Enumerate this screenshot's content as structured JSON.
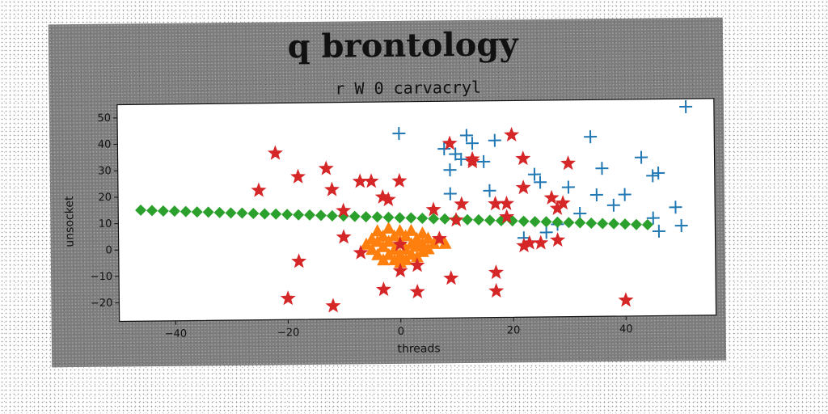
{
  "chart_data": {
    "type": "scatter",
    "title": "q brontology",
    "subtitle": "r W 0 carvacryl",
    "xlabel": "threads",
    "ylabel": "unsocket",
    "xlim": [
      -50,
      56
    ],
    "ylim": [
      -27,
      55
    ],
    "xticks": [
      -40,
      -20,
      0,
      20,
      40
    ],
    "yticks": [
      -20,
      -10,
      0,
      10,
      20,
      30,
      40,
      50
    ],
    "grid": false,
    "legend": "none",
    "series": [
      {
        "color": "#1f77b4",
        "marker": "plus",
        "points": [
          [
            0,
            43
          ],
          [
            12,
            42
          ],
          [
            13,
            39
          ],
          [
            17,
            40
          ],
          [
            8,
            37
          ],
          [
            10,
            35
          ],
          [
            11,
            33
          ],
          [
            15,
            32
          ],
          [
            9,
            29
          ],
          [
            24,
            27
          ],
          [
            25,
            24
          ],
          [
            34,
            41
          ],
          [
            43,
            33
          ],
          [
            45,
            26
          ],
          [
            46,
            27
          ],
          [
            36,
            29
          ],
          [
            51,
            52
          ],
          [
            30,
            22
          ],
          [
            35,
            19
          ],
          [
            40,
            19
          ],
          [
            38,
            15
          ],
          [
            45,
            10
          ],
          [
            49,
            14
          ],
          [
            32,
            12
          ],
          [
            28,
            8
          ],
          [
            22,
            3
          ],
          [
            16,
            21
          ],
          [
            9,
            20
          ],
          [
            26,
            5
          ],
          [
            46,
            5
          ],
          [
            50,
            7
          ]
        ]
      },
      {
        "color": "#ff7f0e",
        "marker": "triangle",
        "points": [
          [
            -4,
            6
          ],
          [
            -2,
            7
          ],
          [
            0,
            6
          ],
          [
            2,
            6
          ],
          [
            4,
            5
          ],
          [
            -5,
            3
          ],
          [
            -3,
            4
          ],
          [
            -1,
            4
          ],
          [
            1,
            4
          ],
          [
            3,
            3
          ],
          [
            5,
            3
          ],
          [
            7,
            3
          ],
          [
            -6,
            1
          ],
          [
            -4,
            2
          ],
          [
            -2,
            2
          ],
          [
            0,
            2
          ],
          [
            2,
            1
          ],
          [
            4,
            1
          ],
          [
            6,
            1
          ],
          [
            8,
            1
          ],
          [
            -5,
            -1
          ],
          [
            -3,
            0
          ],
          [
            -1,
            -1
          ],
          [
            1,
            -1
          ],
          [
            3,
            0
          ],
          [
            5,
            -1
          ],
          [
            -4,
            -3
          ],
          [
            -2,
            -3
          ],
          [
            0,
            -3
          ],
          [
            2,
            -3
          ],
          [
            4,
            -2
          ],
          [
            -1,
            -5
          ],
          [
            1,
            -5
          ],
          [
            3,
            -4
          ],
          [
            0,
            -6
          ],
          [
            -3,
            -5
          ]
        ]
      },
      {
        "color": "#2ca02c",
        "marker": "diamond",
        "points": [
          [
            -46,
            15
          ],
          [
            -44,
            14.8
          ],
          [
            -42,
            14.6
          ],
          [
            -40,
            14.5
          ],
          [
            -38,
            14.3
          ],
          [
            -36,
            14.1
          ],
          [
            -34,
            14
          ],
          [
            -32,
            13.8
          ],
          [
            -30,
            13.6
          ],
          [
            -28,
            13.5
          ],
          [
            -26,
            13.3
          ],
          [
            -24,
            13.1
          ],
          [
            -22,
            13
          ],
          [
            -20,
            12.8
          ],
          [
            -18,
            12.6
          ],
          [
            -16,
            12.5
          ],
          [
            -14,
            12.3
          ],
          [
            -12,
            12.1
          ],
          [
            -10,
            12
          ],
          [
            -8,
            11.8
          ],
          [
            -6,
            11.6
          ],
          [
            -4,
            11.5
          ],
          [
            -2,
            11.3
          ],
          [
            0,
            11.1
          ],
          [
            2,
            11
          ],
          [
            4,
            10.8
          ],
          [
            6,
            10.6
          ],
          [
            8,
            10.5
          ],
          [
            10,
            10.3
          ],
          [
            12,
            10.1
          ],
          [
            14,
            10
          ],
          [
            16,
            9.8
          ],
          [
            18,
            9.6
          ],
          [
            20,
            9.5
          ],
          [
            22,
            9.3
          ],
          [
            24,
            9.1
          ],
          [
            26,
            9
          ],
          [
            28,
            8.8
          ],
          [
            30,
            8.6
          ],
          [
            32,
            8.5
          ],
          [
            34,
            8.3
          ],
          [
            36,
            8.1
          ],
          [
            38,
            8
          ],
          [
            40,
            7.8
          ],
          [
            42,
            7.6
          ],
          [
            44,
            7.5
          ]
        ]
      },
      {
        "color": "#d62728",
        "marker": "star",
        "points": [
          [
            -22,
            36
          ],
          [
            -18,
            27
          ],
          [
            -13,
            30
          ],
          [
            -25,
            22
          ],
          [
            -12,
            22
          ],
          [
            -7,
            25
          ],
          [
            -5,
            25
          ],
          [
            0,
            25
          ],
          [
            -2,
            18
          ],
          [
            -3,
            19
          ],
          [
            -10,
            14
          ],
          [
            -10,
            4
          ],
          [
            -7,
            -2
          ],
          [
            -18,
            -5
          ],
          [
            -20,
            -19
          ],
          [
            -12,
            -22
          ],
          [
            -3,
            -16
          ],
          [
            0,
            -9
          ],
          [
            3,
            -7
          ],
          [
            3,
            -17
          ],
          [
            6,
            14
          ],
          [
            7,
            3
          ],
          [
            9,
            39
          ],
          [
            13,
            33
          ],
          [
            13,
            32
          ],
          [
            20,
            42
          ],
          [
            22,
            33
          ],
          [
            30,
            31
          ],
          [
            22,
            22
          ],
          [
            17,
            16
          ],
          [
            19,
            16
          ],
          [
            11,
            16
          ],
          [
            10,
            10
          ],
          [
            19,
            11
          ],
          [
            27,
            18
          ],
          [
            29,
            16
          ],
          [
            28,
            14
          ],
          [
            23,
            1
          ],
          [
            22,
            0
          ],
          [
            25,
            1
          ],
          [
            28,
            2
          ],
          [
            17,
            -10
          ],
          [
            17,
            -17
          ],
          [
            9,
            -12
          ],
          [
            40,
            -21
          ],
          [
            0,
            1
          ]
        ]
      }
    ]
  }
}
